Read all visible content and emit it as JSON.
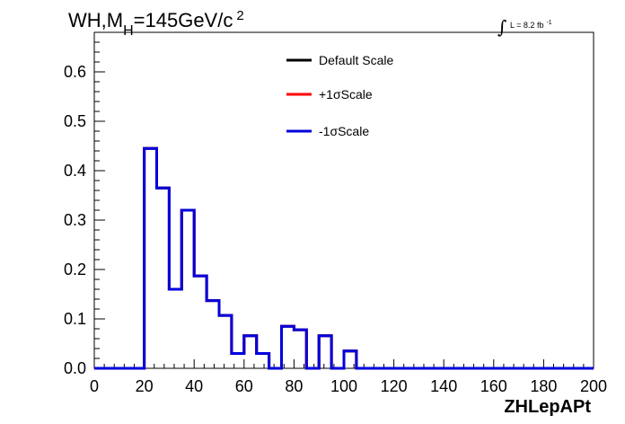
{
  "chart_data": {
    "type": "step",
    "title": {
      "prefix": "WH,M",
      "subscript": "H",
      "value": "=145GeV/c",
      "superscript": "2"
    },
    "lumi": {
      "integral": "∫",
      "text": "L = 8.2 fb",
      "superscript": "-1"
    },
    "xlabel": "ZHLepAPt",
    "ylabel": "",
    "xlim": [
      0,
      200
    ],
    "ylim": [
      0,
      0.68
    ],
    "x_ticks": [
      0,
      20,
      40,
      60,
      80,
      100,
      120,
      140,
      160,
      180,
      200
    ],
    "y_ticks": [
      0.0,
      0.1,
      0.2,
      0.3,
      0.4,
      0.5,
      0.6
    ],
    "x_tick_labels": [
      "0",
      "20",
      "40",
      "60",
      "80",
      "100",
      "120",
      "140",
      "160",
      "180",
      "200"
    ],
    "y_tick_labels": [
      "0.0",
      "0.1",
      "0.2",
      "0.3",
      "0.4",
      "0.5",
      "0.6"
    ],
    "bin_width": 5,
    "bin_edges_start": 0,
    "grid": false,
    "legend_position": "top-center",
    "series": [
      {
        "name": "Default Scale",
        "color": "#000000",
        "values": [
          0,
          0,
          0,
          0,
          0.445,
          0.365,
          0.16,
          0.32,
          0.187,
          0.137,
          0.107,
          0.03,
          0.066,
          0.03,
          0,
          0.085,
          0.078,
          0,
          0.066,
          0,
          0.035,
          0,
          0,
          0,
          0,
          0,
          0,
          0,
          0,
          0,
          0,
          0,
          0,
          0,
          0,
          0,
          0,
          0,
          0,
          0
        ]
      },
      {
        "name": "+1σScale",
        "color": "#ff0000",
        "values": [
          0,
          0,
          0,
          0,
          0.445,
          0.365,
          0.16,
          0.32,
          0.187,
          0.137,
          0.107,
          0.03,
          0.066,
          0.03,
          0,
          0.085,
          0.078,
          0,
          0.066,
          0,
          0.035,
          0,
          0,
          0,
          0,
          0,
          0,
          0,
          0,
          0,
          0,
          0,
          0,
          0,
          0,
          0,
          0,
          0,
          0,
          0
        ]
      },
      {
        "name": "-1σScale",
        "color": "#0000dd",
        "values": [
          0,
          0,
          0,
          0,
          0.445,
          0.365,
          0.16,
          0.32,
          0.187,
          0.137,
          0.107,
          0.03,
          0.066,
          0.03,
          0,
          0.085,
          0.078,
          0,
          0.066,
          0,
          0.035,
          0,
          0,
          0,
          0,
          0,
          0,
          0,
          0,
          0,
          0,
          0,
          0,
          0,
          0,
          0,
          0,
          0,
          0,
          0
        ]
      }
    ]
  }
}
